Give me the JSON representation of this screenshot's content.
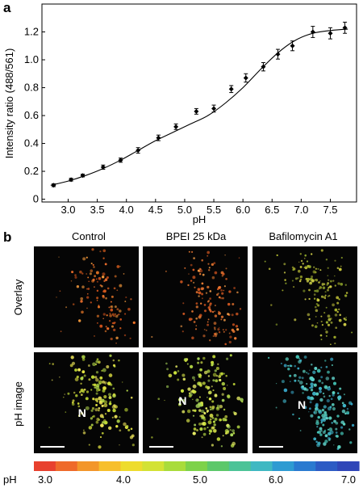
{
  "panel_a_label": "a",
  "panel_b_label": "b",
  "chart_data": {
    "type": "scatter",
    "title": "",
    "xlabel": "pH",
    "ylabel": "Intensity ratio (488/561)",
    "xlim": [
      2.55,
      7.95
    ],
    "ylim": [
      -0.02,
      1.4
    ],
    "xticks": [
      "3.0",
      "3.5",
      "4.0",
      "4.5",
      "5.0",
      "5.5",
      "6.0",
      "6.5",
      "7.0",
      "7.5"
    ],
    "yticks": [
      "0",
      "0.2",
      "0.4",
      "0.6",
      "0.8",
      "1.0",
      "1.2"
    ],
    "grid": false,
    "series": [
      {
        "kind": "points_with_error_bars",
        "x": [
          2.75,
          3.05,
          3.25,
          3.6,
          3.9,
          4.2,
          4.55,
          4.85,
          5.2,
          5.5,
          5.8,
          6.05,
          6.35,
          6.6,
          6.85,
          7.2,
          7.5,
          7.75
        ],
        "y": [
          0.1,
          0.14,
          0.17,
          0.23,
          0.28,
          0.35,
          0.44,
          0.52,
          0.63,
          0.65,
          0.79,
          0.87,
          0.95,
          1.04,
          1.1,
          1.2,
          1.19,
          1.23
        ],
        "error": [
          0.01,
          0.01,
          0.01,
          0.015,
          0.015,
          0.02,
          0.02,
          0.02,
          0.02,
          0.025,
          0.025,
          0.03,
          0.03,
          0.035,
          0.035,
          0.04,
          0.04,
          0.04
        ]
      },
      {
        "kind": "fit_curve",
        "x": [
          2.7,
          3.0,
          3.3,
          3.6,
          3.9,
          4.2,
          4.5,
          4.8,
          5.1,
          5.4,
          5.7,
          6.0,
          6.3,
          6.6,
          6.9,
          7.2,
          7.5,
          7.8
        ],
        "y": [
          0.1,
          0.13,
          0.17,
          0.22,
          0.28,
          0.35,
          0.42,
          0.48,
          0.54,
          0.6,
          0.69,
          0.8,
          0.93,
          1.05,
          1.14,
          1.19,
          1.21,
          1.22
        ]
      }
    ]
  },
  "panel_b": {
    "columns": [
      "Control",
      "BPEI 25 kDa",
      "Bafilomycin A1"
    ],
    "rows": [
      "Overlay",
      "pH image"
    ],
    "nucleus_label": "N",
    "colorbar": {
      "title": "pH",
      "tick_labels": [
        "3.0",
        "4.0",
        "5.0",
        "6.0",
        "7.0"
      ],
      "colors": [
        "#e8412e",
        "#ef6a2a",
        "#f3962a",
        "#f7bf2c",
        "#eedc2d",
        "#d3e234",
        "#a9dc3b",
        "#7dd24a",
        "#5cc86a",
        "#4cc397",
        "#3fb8c2",
        "#2e9bd2",
        "#2a7ad0",
        "#2c5bc4",
        "#2f46b8"
      ]
    }
  }
}
